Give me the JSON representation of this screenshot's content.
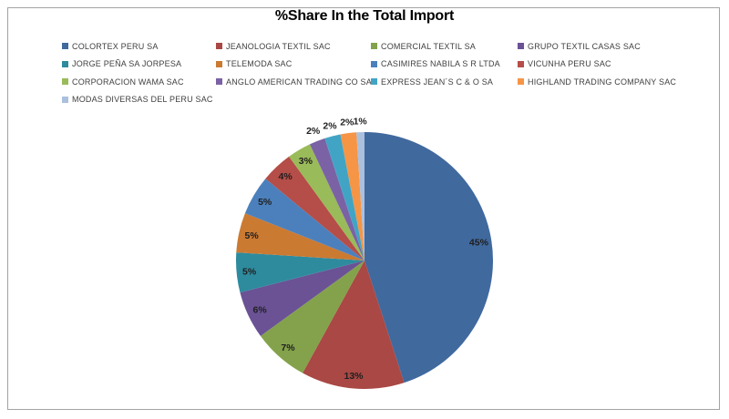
{
  "chart_data": {
    "type": "pie",
    "title": "%Share In the Total Import",
    "value_suffix": "%",
    "direction": "clockwise",
    "start_angle_deg": 0,
    "legend_position": "top-left, 4 columns",
    "label_style": "percent labels inside slices; slices of 2% or less labeled outside rim",
    "series": [
      {
        "label": "COLORTEX PERU SA",
        "value": 45,
        "color": "#40699E"
      },
      {
        "label": "JEANOLOGIA TEXTIL SAC",
        "value": 13,
        "color": "#A94844"
      },
      {
        "label": "COMERCIAL TEXTIL SA",
        "value": 7,
        "color": "#83A24B"
      },
      {
        "label": "GRUPO TEXTIL CASAS SAC",
        "value": 6,
        "color": "#6A5295"
      },
      {
        "label": "JORGE PEÑA SA JORPESA",
        "value": 5,
        "color": "#2E8B9E"
      },
      {
        "label": "TELEMODA SAC",
        "value": 5,
        "color": "#CB7A32"
      },
      {
        "label": "CASIMIRES NABILA S R LTDA",
        "value": 5,
        "color": "#4C80BC"
      },
      {
        "label": "VICUNHA PERU SAC",
        "value": 4,
        "color": "#B54D48"
      },
      {
        "label": "CORPORACION WAMA SAC",
        "value": 3,
        "color": "#9ABB59"
      },
      {
        "label": "ANGLO AMERICAN TRADING CO SA",
        "value": 2,
        "color": "#7A62A5"
      },
      {
        "label": "EXPRESS JEAN´S C & O SA",
        "value": 2,
        "color": "#42A4C5"
      },
      {
        "label": "HIGHLAND TRADING COMPANY SAC",
        "value": 2,
        "color": "#F69545"
      },
      {
        "label": "MODAS DIVERSAS DEL PERU SAC",
        "value": 1,
        "color": "#ABC0DD"
      }
    ]
  }
}
